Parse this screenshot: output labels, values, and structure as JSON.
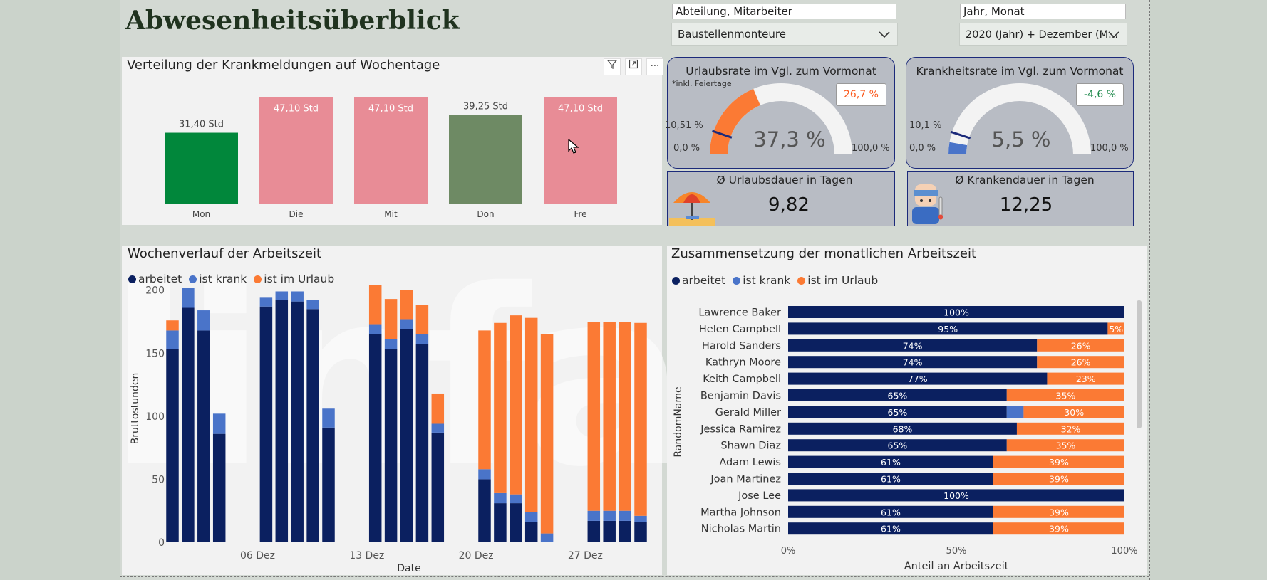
{
  "page": {
    "title": "Abwesenheitsüberblick"
  },
  "filters": {
    "dept": {
      "label": "Abteilung, Mitarbeiter",
      "value": "Baustellenmonteure"
    },
    "period": {
      "label": "Jahr, Monat",
      "value": "2020 (Jahr) + Dezember (M..."
    }
  },
  "colors": {
    "worked": "#0b2060",
    "sick": "#4a74c9",
    "vacation": "#fb7a34"
  },
  "weekday_panel": {
    "title": "Verteilung der Krankmeldungen auf Wochentage",
    "chart_data": {
      "type": "bar",
      "categories": [
        "Mon",
        "Die",
        "Mit",
        "Don",
        "Fre"
      ],
      "values": [
        31.4,
        47.1,
        47.1,
        39.25,
        47.1
      ],
      "labels": [
        "31,40 Std",
        "47,10 Std",
        "47,10 Std",
        "39,25 Std",
        "47,10 Std"
      ],
      "colors": [
        "#01873b",
        "#e88c96",
        "#e88c96",
        "#6e8a64",
        "#e88c96"
      ],
      "ylim": [
        0,
        50
      ]
    }
  },
  "kpis": {
    "vacation_rate": {
      "title": "Urlaubsrate im Vgl. zum Vormonat",
      "note": "*inkl. Feiertage",
      "value": "37,3 %",
      "value_num": 37.3,
      "delta": "26,7 %",
      "delta_color": "#fb5a1e",
      "target": "10,51 %",
      "target_num": 10.51,
      "min": "0,0 %",
      "max": "100,0 %",
      "fill_color": "#fb7a34"
    },
    "sick_rate": {
      "title": "Krankheitsrate im Vgl. zum Vormonat",
      "value": "5,5 %",
      "value_num": 5.5,
      "delta": "-4,6 %",
      "delta_color": "#1f8a4c",
      "target": "10,1 %",
      "target_num": 10.1,
      "min": "0,0 %",
      "max": "100,0 %",
      "fill_color": "#4a74c9"
    },
    "vacation_days": {
      "title": "Ø Urlaubsdauer in Tagen",
      "value": "9,82",
      "icon": "beach-umbrella-icon"
    },
    "sick_days": {
      "title": "Ø Krankendauer in Tagen",
      "value": "12,25",
      "icon": "sick-person-icon"
    }
  },
  "weekly_panel": {
    "title": "Wochenverlauf der Arbeitszeit",
    "legend": [
      "arbeitet",
      "ist krank",
      "ist im Urlaub"
    ],
    "chart_data": {
      "type": "bar",
      "stacked": true,
      "xlabel": "Date",
      "ylabel": "Bruttostunden",
      "ylim": [
        0,
        210
      ],
      "yticks": [
        0,
        50,
        100,
        150,
        200
      ],
      "xticks": [
        "06 Dez",
        "13 Dez",
        "20 Dez",
        "27 Dez"
      ],
      "x": [
        "2020-12-01",
        "2020-12-02",
        "2020-12-03",
        "2020-12-04",
        "2020-12-07",
        "2020-12-08",
        "2020-12-09",
        "2020-12-10",
        "2020-12-11",
        "2020-12-14",
        "2020-12-15",
        "2020-12-16",
        "2020-12-17",
        "2020-12-18",
        "2020-12-21",
        "2020-12-22",
        "2020-12-23",
        "2020-12-24",
        "2020-12-25",
        "2020-12-28",
        "2020-12-29",
        "2020-12-30",
        "2020-12-31"
      ],
      "series": [
        {
          "name": "arbeitet",
          "values": [
            153,
            186,
            168,
            86,
            187,
            192,
            191,
            185,
            91,
            165,
            153,
            169,
            157,
            87,
            50,
            31,
            31,
            16,
            0,
            17,
            17,
            17,
            16
          ]
        },
        {
          "name": "ist krank",
          "values": [
            15,
            16,
            16,
            16,
            7,
            7,
            8,
            7,
            15,
            8,
            8,
            8,
            8,
            7,
            8,
            8,
            7,
            8,
            7,
            8,
            8,
            8,
            5
          ]
        },
        {
          "name": "ist im Urlaub",
          "values": [
            8,
            0,
            0,
            0,
            0,
            0,
            0,
            0,
            0,
            31,
            32,
            23,
            23,
            24,
            110,
            135,
            142,
            154,
            158,
            150,
            150,
            150,
            153
          ]
        }
      ]
    }
  },
  "monthly_panel": {
    "title": "Zusammensetzung der monatlichen Arbeitszeit",
    "legend": [
      "arbeitet",
      "ist krank",
      "ist im Urlaub"
    ],
    "chart_data": {
      "type": "bar",
      "orientation": "horizontal",
      "stacked": "percent",
      "xlabel": "Anteil an Arbeitszeit",
      "ylabel": "RandomName",
      "xticks": [
        "0%",
        "50%",
        "100%"
      ],
      "categories": [
        "Lawrence Baker",
        "Helen Campbell",
        "Harold Sanders",
        "Kathryn Moore",
        "Keith Campbell",
        "Benjamin Davis",
        "Gerald Miller",
        "Jessica Ramirez",
        "Shawn Diaz",
        "Adam Lewis",
        "Joan Martinez",
        "Jose Lee",
        "Martha Johnson",
        "Nicholas Martin"
      ],
      "series": [
        {
          "name": "arbeitet",
          "values": [
            100,
            95,
            74,
            74,
            77,
            65,
            65,
            68,
            65,
            61,
            61,
            100,
            61,
            61
          ],
          "labels": [
            "100%",
            "95%",
            "74%",
            "74%",
            "77%",
            "65%",
            "65%",
            "68%",
            "65%",
            "61%",
            "61%",
            "100%",
            "61%",
            "61%"
          ]
        },
        {
          "name": "ist krank",
          "values": [
            0,
            0,
            0,
            0,
            0,
            0,
            5,
            0,
            0,
            0,
            0,
            0,
            0,
            0
          ],
          "labels": [
            "",
            "",
            "",
            "",
            "",
            "",
            "",
            "",
            "",
            "",
            "",
            "",
            "",
            ""
          ]
        },
        {
          "name": "ist im Urlaub",
          "values": [
            0,
            5,
            26,
            26,
            23,
            35,
            30,
            32,
            35,
            39,
            39,
            0,
            39,
            39
          ],
          "labels": [
            "",
            "5%",
            "26%",
            "26%",
            "23%",
            "35%",
            "30%",
            "32%",
            "35%",
            "39%",
            "39%",
            "",
            "39%",
            "39%"
          ]
        }
      ]
    }
  }
}
